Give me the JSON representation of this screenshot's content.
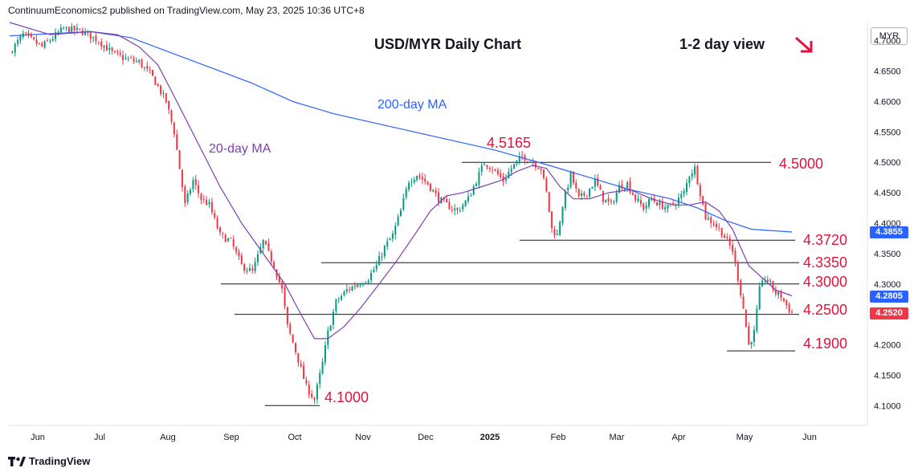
{
  "header": "ContinuumEconomics2 published on TradingView.com, May 23, 2025 10:36 UTC+8",
  "title": "USD/MYR Daily Chart",
  "view": "1-2 day view",
  "currency": "MYR",
  "footer_brand": "TradingView",
  "colors": {
    "up": "#089981",
    "down": "#f23645",
    "ma200": "#2962ff",
    "ma20": "#7e3fb0",
    "level": "#e0143c",
    "price_box": "#2962ff",
    "last_box": "#f23645"
  },
  "chart_data": {
    "type": "candlestick",
    "x_ticks": [
      "Jun",
      "Jul",
      "Aug",
      "Sep",
      "Oct",
      "Nov",
      "Dec",
      "2025",
      "Feb",
      "Mar",
      "Apr",
      "May",
      "Jun"
    ],
    "y_ticks": [
      "4.1000",
      "4.1500",
      "4.2000",
      "4.2500",
      "4.3000",
      "4.3500",
      "4.4000",
      "4.4500",
      "4.5000",
      "4.5500",
      "4.6000",
      "4.6500",
      "4.7000"
    ],
    "ylim": [
      4.07,
      4.73
    ],
    "levels": [
      {
        "value": 4.5165,
        "label": "4.5165"
      },
      {
        "value": 4.5,
        "label": "4.5000"
      },
      {
        "value": 4.372,
        "label": "4.3720"
      },
      {
        "value": 4.335,
        "label": "4.3350"
      },
      {
        "value": 4.3,
        "label": "4.3000"
      },
      {
        "value": 4.25,
        "label": "4.2500"
      },
      {
        "value": 4.19,
        "label": "4.1900"
      },
      {
        "value": 4.1,
        "label": "4.1000"
      }
    ],
    "ma_labels": {
      "ma200": "200-day MA",
      "ma20": "20-day MA"
    },
    "price_labels": [
      {
        "value": 4.3855,
        "label": "4.3855"
      },
      {
        "value": 4.2805,
        "label": "4.2805"
      },
      {
        "value": 4.252,
        "label": "4.2520"
      }
    ],
    "close_path": [
      [
        0,
        4.68
      ],
      [
        5,
        4.71
      ],
      [
        12,
        4.69
      ],
      [
        20,
        4.72
      ],
      [
        27,
        4.715
      ],
      [
        33,
        4.7
      ],
      [
        38,
        4.68
      ],
      [
        43,
        4.67
      ],
      [
        48,
        4.665
      ],
      [
        53,
        4.64
      ],
      [
        58,
        4.6
      ],
      [
        61,
        4.55
      ],
      [
        63,
        4.49
      ],
      [
        65,
        4.43
      ],
      [
        68,
        4.47
      ],
      [
        71,
        4.44
      ],
      [
        74,
        4.43
      ],
      [
        78,
        4.38
      ],
      [
        82,
        4.37
      ],
      [
        86,
        4.33
      ],
      [
        90,
        4.32
      ],
      [
        94,
        4.37
      ],
      [
        98,
        4.33
      ],
      [
        101,
        4.29
      ],
      [
        103,
        4.23
      ],
      [
        106,
        4.19
      ],
      [
        108,
        4.16
      ],
      [
        110,
        4.13
      ],
      [
        113,
        4.11
      ],
      [
        116,
        4.17
      ],
      [
        118,
        4.22
      ],
      [
        121,
        4.27
      ],
      [
        125,
        4.29
      ],
      [
        129,
        4.3
      ],
      [
        133,
        4.31
      ],
      [
        136,
        4.33
      ],
      [
        139,
        4.36
      ],
      [
        142,
        4.38
      ],
      [
        145,
        4.42
      ],
      [
        148,
        4.47
      ],
      [
        151,
        4.48
      ],
      [
        155,
        4.465
      ],
      [
        159,
        4.44
      ],
      [
        162,
        4.43
      ],
      [
        166,
        4.42
      ],
      [
        170,
        4.44
      ],
      [
        173,
        4.47
      ],
      [
        176,
        4.5
      ],
      [
        179,
        4.49
      ],
      [
        183,
        4.47
      ],
      [
        186,
        4.49
      ],
      [
        190,
        4.51
      ],
      [
        194,
        4.5
      ],
      [
        197,
        4.49
      ],
      [
        199,
        4.45
      ],
      [
        201,
        4.39
      ],
      [
        203,
        4.38
      ],
      [
        205,
        4.43
      ],
      [
        208,
        4.48
      ],
      [
        211,
        4.44
      ],
      [
        214,
        4.45
      ],
      [
        217,
        4.47
      ],
      [
        220,
        4.44
      ],
      [
        223,
        4.43
      ],
      [
        226,
        4.46
      ],
      [
        229,
        4.465
      ],
      [
        232,
        4.44
      ],
      [
        235,
        4.425
      ],
      [
        238,
        4.44
      ],
      [
        241,
        4.43
      ],
      [
        244,
        4.425
      ],
      [
        247,
        4.435
      ],
      [
        250,
        4.45
      ],
      [
        252,
        4.48
      ],
      [
        254,
        4.49
      ],
      [
        256,
        4.45
      ],
      [
        258,
        4.41
      ],
      [
        261,
        4.4
      ],
      [
        264,
        4.385
      ],
      [
        266,
        4.37
      ],
      [
        268,
        4.355
      ],
      [
        270,
        4.31
      ],
      [
        272,
        4.26
      ],
      [
        274,
        4.2
      ],
      [
        276,
        4.22
      ],
      [
        278,
        4.29
      ],
      [
        280,
        4.31
      ],
      [
        282,
        4.3
      ],
      [
        284,
        4.285
      ],
      [
        286,
        4.28
      ],
      [
        288,
        4.265
      ],
      [
        290,
        4.252
      ]
    ],
    "ma200_path": [
      [
        0,
        4.708
      ],
      [
        30,
        4.715
      ],
      [
        45,
        4.705
      ],
      [
        60,
        4.68
      ],
      [
        75,
        4.655
      ],
      [
        90,
        4.63
      ],
      [
        105,
        4.6
      ],
      [
        120,
        4.58
      ],
      [
        140,
        4.56
      ],
      [
        160,
        4.54
      ],
      [
        180,
        4.52
      ],
      [
        200,
        4.495
      ],
      [
        215,
        4.475
      ],
      [
        230,
        4.455
      ],
      [
        245,
        4.44
      ],
      [
        255,
        4.425
      ],
      [
        265,
        4.405
      ],
      [
        275,
        4.39
      ],
      [
        290,
        4.3855
      ]
    ],
    "ma20_path": [
      [
        0,
        4.73
      ],
      [
        15,
        4.71
      ],
      [
        30,
        4.715
      ],
      [
        40,
        4.71
      ],
      [
        48,
        4.69
      ],
      [
        55,
        4.66
      ],
      [
        62,
        4.6
      ],
      [
        70,
        4.53
      ],
      [
        78,
        4.46
      ],
      [
        86,
        4.4
      ],
      [
        94,
        4.35
      ],
      [
        102,
        4.3
      ],
      [
        108,
        4.25
      ],
      [
        113,
        4.21
      ],
      [
        118,
        4.21
      ],
      [
        124,
        4.23
      ],
      [
        130,
        4.26
      ],
      [
        137,
        4.3
      ],
      [
        143,
        4.335
      ],
      [
        150,
        4.38
      ],
      [
        156,
        4.42
      ],
      [
        162,
        4.445
      ],
      [
        168,
        4.45
      ],
      [
        175,
        4.46
      ],
      [
        182,
        4.47
      ],
      [
        188,
        4.485
      ],
      [
        194,
        4.495
      ],
      [
        199,
        4.49
      ],
      [
        204,
        4.46
      ],
      [
        209,
        4.44
      ],
      [
        215,
        4.44
      ],
      [
        222,
        4.45
      ],
      [
        230,
        4.455
      ],
      [
        238,
        4.44
      ],
      [
        246,
        4.43
      ],
      [
        252,
        4.43
      ],
      [
        258,
        4.435
      ],
      [
        263,
        4.42
      ],
      [
        268,
        4.39
      ],
      [
        274,
        4.33
      ],
      [
        279,
        4.31
      ],
      [
        284,
        4.29
      ],
      [
        290,
        4.2805
      ]
    ]
  }
}
